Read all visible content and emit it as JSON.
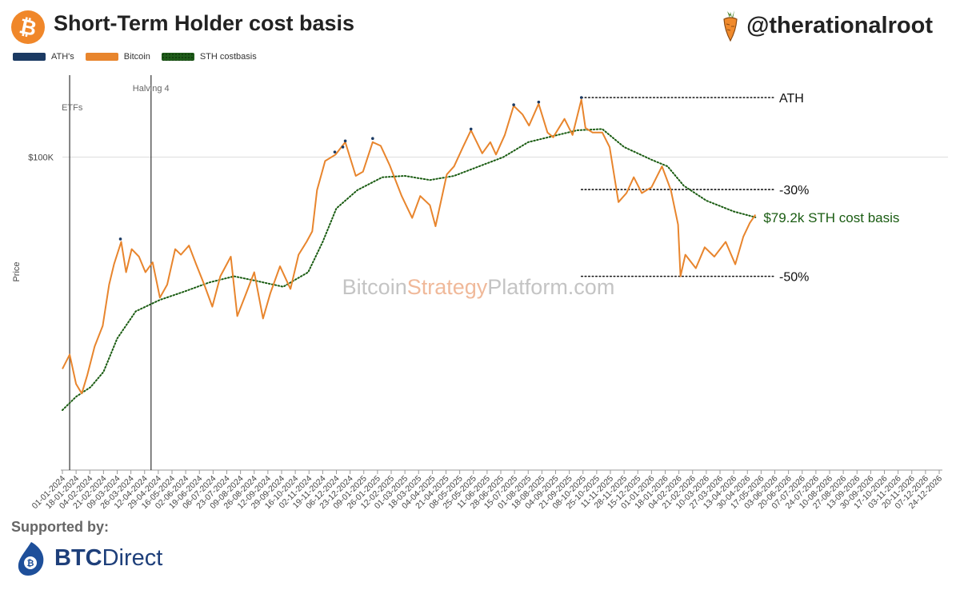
{
  "header": {
    "title": "Short-Term Holder cost basis",
    "handle": "@therationalroot",
    "bitcoin_icon": "bitcoin-icon",
    "carrot_icon": "carrot-icon"
  },
  "legend": {
    "ath": "ATH's",
    "bitcoin": "Bitcoin",
    "sth": "STH costbasis"
  },
  "colors": {
    "bitcoin": "#e8852d",
    "sth": "#1a5c12",
    "ath": "#1b3a63",
    "watermark_grey": "#c4c4c4",
    "watermark_orange": "#f0b99a"
  },
  "chart_data": {
    "type": "line",
    "ylabel": "Price",
    "y_scale": "log",
    "y_ticks": [
      {
        "value": 100000,
        "label": "$100K"
      }
    ],
    "x_ticks": [
      "01-01-2024",
      "18-01-2024",
      "04-02-2024",
      "21-02-2024",
      "09-03-2024",
      "26-03-2024",
      "12-04-2024",
      "29-04-2024",
      "16-05-2024",
      "02-06-2024",
      "19-06-2024",
      "06-07-2024",
      "23-07-2024",
      "09-08-2024",
      "26-08-2024",
      "12-09-2024",
      "29-09-2024",
      "16-10-2024",
      "02-11-2024",
      "19-11-2024",
      "06-12-2024",
      "23-12-2024",
      "09-01-2025",
      "26-01-2025",
      "12-02-2025",
      "01-03-2025",
      "18-03-2025",
      "04-04-2025",
      "21-04-2025",
      "08-05-2025",
      "25-05-2025",
      "11-06-2025",
      "28-06-2025",
      "15-07-2025",
      "01-08-2025",
      "18-08-2025",
      "04-09-2025",
      "21-09-2025",
      "08-10-2025",
      "25-10-2025",
      "11-11-2025",
      "28-11-2025",
      "15-12-2025",
      "01-01-2026",
      "18-01-2026",
      "04-02-2026",
      "21-02-2026",
      "10-03-2026",
      "27-03-2026",
      "13-04-2026",
      "30-04-2026",
      "17-05-2026",
      "03-06-2026",
      "20-06-2026",
      "07-07-2026",
      "24-07-2026",
      "10-08-2026",
      "27-08-2026",
      "13-09-2026",
      "30-09-2026",
      "17-10-2026",
      "03-11-2026",
      "20-11-2026",
      "07-12-2026",
      "24-12-2026"
    ],
    "series": [
      {
        "name": "Bitcoin",
        "points": [
          [
            "01-01-2024",
            44000
          ],
          [
            "10-01-2024",
            46500
          ],
          [
            "18-01-2024",
            41500
          ],
          [
            "25-01-2024",
            40000
          ],
          [
            "01-02-2024",
            43000
          ],
          [
            "10-02-2024",
            48000
          ],
          [
            "20-02-2024",
            52000
          ],
          [
            "28-02-2024",
            61000
          ],
          [
            "05-03-2024",
            66000
          ],
          [
            "14-03-2024",
            72000
          ],
          [
            "20-03-2024",
            64000
          ],
          [
            "27-03-2024",
            70000
          ],
          [
            "05-04-2024",
            68000
          ],
          [
            "13-04-2024",
            64000
          ],
          [
            "22-04-2024",
            66500
          ],
          [
            "01-05-2024",
            58000
          ],
          [
            "10-05-2024",
            61000
          ],
          [
            "20-05-2024",
            70000
          ],
          [
            "27-05-2024",
            68500
          ],
          [
            "06-06-2024",
            71000
          ],
          [
            "15-06-2024",
            66000
          ],
          [
            "25-06-2024",
            61000
          ],
          [
            "05-07-2024",
            56000
          ],
          [
            "15-07-2024",
            63000
          ],
          [
            "28-07-2024",
            68000
          ],
          [
            "05-08-2024",
            54000
          ],
          [
            "15-08-2024",
            58500
          ],
          [
            "26-08-2024",
            64000
          ],
          [
            "06-09-2024",
            53500
          ],
          [
            "15-09-2024",
            59000
          ],
          [
            "27-09-2024",
            65500
          ],
          [
            "10-10-2024",
            60000
          ],
          [
            "20-10-2024",
            68500
          ],
          [
            "30-10-2024",
            72000
          ],
          [
            "06-11-2024",
            75000
          ],
          [
            "12-11-2024",
            88000
          ],
          [
            "22-11-2024",
            98500
          ],
          [
            "05-12-2024",
            101000
          ],
          [
            "17-12-2024",
            106000
          ],
          [
            "30-12-2024",
            93000
          ],
          [
            "08-01-2025",
            94500
          ],
          [
            "20-01-2025",
            106000
          ],
          [
            "30-01-2025",
            104500
          ],
          [
            "10-02-2025",
            97000
          ],
          [
            "25-02-2025",
            86000
          ],
          [
            "10-03-2025",
            79000
          ],
          [
            "20-03-2025",
            86000
          ],
          [
            "01-04-2025",
            83000
          ],
          [
            "08-04-2025",
            76500
          ],
          [
            "22-04-2025",
            93500
          ],
          [
            "01-05-2025",
            96500
          ],
          [
            "12-05-2025",
            104000
          ],
          [
            "22-05-2025",
            111000
          ],
          [
            "05-06-2025",
            101500
          ],
          [
            "15-06-2025",
            106000
          ],
          [
            "22-06-2025",
            101000
          ],
          [
            "03-07-2025",
            109000
          ],
          [
            "14-07-2025",
            122000
          ],
          [
            "25-07-2025",
            118000
          ],
          [
            "02-08-2025",
            113000
          ],
          [
            "14-08-2025",
            123000
          ],
          [
            "25-08-2025",
            110000
          ],
          [
            "01-09-2025",
            108000
          ],
          [
            "15-09-2025",
            116000
          ],
          [
            "25-09-2025",
            109000
          ],
          [
            "06-10-2025",
            125000
          ],
          [
            "11-10-2025",
            112000
          ],
          [
            "20-10-2025",
            110000
          ],
          [
            "01-11-2025",
            110000
          ],
          [
            "10-11-2025",
            104000
          ],
          [
            "21-11-2025",
            84000
          ],
          [
            "01-12-2025",
            87000
          ],
          [
            "10-12-2025",
            92500
          ],
          [
            "20-12-2025",
            87000
          ],
          [
            "01-01-2026",
            89000
          ],
          [
            "14-01-2026",
            96500
          ],
          [
            "25-01-2026",
            88000
          ],
          [
            "03-02-2026",
            77000
          ],
          [
            "06-02-2026",
            63000
          ],
          [
            "12-02-2026",
            68500
          ],
          [
            "25-02-2026",
            65000
          ],
          [
            "08-03-2026",
            70500
          ],
          [
            "20-03-2026",
            68000
          ],
          [
            "03-04-2026",
            72000
          ],
          [
            "15-04-2026",
            66000
          ],
          [
            "25-04-2026",
            73500
          ],
          [
            "03-05-2026",
            77500
          ],
          [
            "10-05-2026",
            80000
          ]
        ]
      },
      {
        "name": "STH costbasis",
        "points": [
          [
            "01-01-2024",
            37500
          ],
          [
            "18-01-2024",
            39500
          ],
          [
            "05-02-2024",
            41000
          ],
          [
            "21-02-2024",
            43500
          ],
          [
            "09-03-2024",
            49500
          ],
          [
            "01-04-2024",
            55000
          ],
          [
            "01-05-2024",
            57500
          ],
          [
            "02-06-2024",
            59500
          ],
          [
            "01-07-2024",
            61500
          ],
          [
            "01-08-2024",
            63000
          ],
          [
            "26-08-2024",
            62000
          ],
          [
            "01-10-2024",
            60500
          ],
          [
            "01-11-2024",
            64000
          ],
          [
            "19-11-2024",
            72000
          ],
          [
            "06-12-2024",
            82000
          ],
          [
            "01-01-2025",
            88000
          ],
          [
            "01-02-2025",
            92500
          ],
          [
            "01-03-2025",
            93000
          ],
          [
            "01-04-2025",
            91500
          ],
          [
            "01-05-2025",
            93000
          ],
          [
            "01-06-2025",
            96500
          ],
          [
            "01-07-2025",
            100000
          ],
          [
            "01-08-2025",
            106000
          ],
          [
            "01-09-2025",
            108500
          ],
          [
            "01-10-2025",
            111000
          ],
          [
            "01-11-2025",
            111500
          ],
          [
            "28-11-2025",
            104000
          ],
          [
            "01-01-2026",
            99000
          ],
          [
            "21-01-2026",
            96500
          ],
          [
            "10-02-2026",
            89500
          ],
          [
            "10-03-2026",
            84500
          ],
          [
            "13-04-2026",
            81000
          ],
          [
            "10-05-2026",
            79200
          ]
        ]
      }
    ],
    "ath_points": [
      [
        "13-03-2024",
        72800
      ],
      [
        "04-12-2024",
        102000
      ],
      [
        "14-12-2024",
        104000
      ],
      [
        "17-12-2024",
        106500
      ],
      [
        "20-01-2025",
        107500
      ],
      [
        "22-05-2025",
        111500
      ],
      [
        "14-07-2025",
        122500
      ],
      [
        "14-08-2025",
        123800
      ],
      [
        "06-10-2025",
        126000
      ]
    ],
    "vlines": [
      {
        "date": "10-01-2024",
        "label": "ETFs"
      },
      {
        "date": "20-04-2024",
        "label": "Halving 4"
      }
    ],
    "annotations": [
      {
        "label": "ATH",
        "value": 126000,
        "from": "06-10-2025",
        "to": "30-06-2026",
        "color": "#111111"
      },
      {
        "label": "-30%",
        "value": 88200,
        "from": "06-10-2025",
        "to": "30-06-2026",
        "color": "#111111"
      },
      {
        "label": "-50%",
        "value": 63000,
        "from": "06-10-2025",
        "to": "30-06-2026",
        "color": "#111111"
      },
      {
        "label": "$79.2k STH cost basis",
        "value": 79200,
        "at": "10-05-2026",
        "color": "#1a5c12"
      }
    ],
    "watermark": {
      "part1": "Bitcoin",
      "part2": "Strategy",
      "part3": "Platform.com"
    }
  },
  "footer": {
    "supported_by": "Supported by:",
    "btc_direct_bold": "BTC",
    "btc_direct_rest": "Direct"
  }
}
